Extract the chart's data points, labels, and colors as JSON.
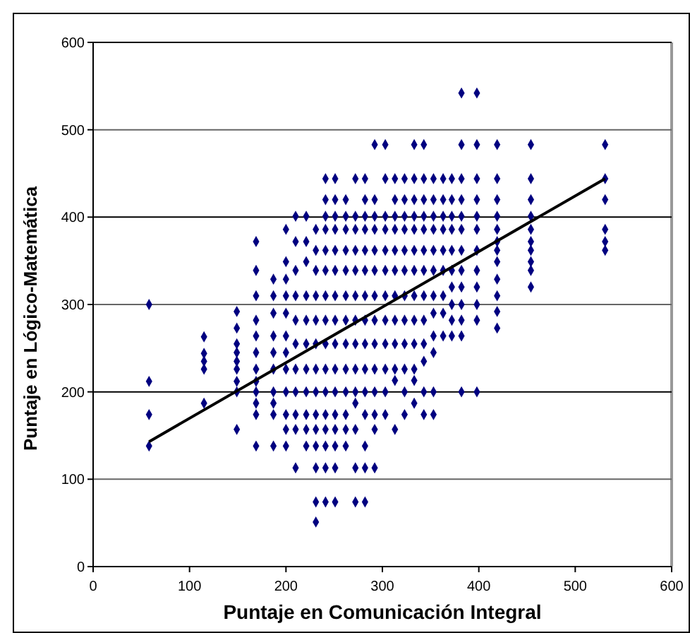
{
  "chart_data": {
    "type": "scatter",
    "xlabel": "Puntaje en Comunicación Integral",
    "ylabel": "Puntaje en Lógico-Matemática",
    "xlim": [
      0,
      600
    ],
    "ylim": [
      0,
      600
    ],
    "xticks": [
      0,
      100,
      200,
      300,
      400,
      500,
      600
    ],
    "yticks": [
      0,
      100,
      200,
      300,
      400,
      500,
      600
    ],
    "grid": "y",
    "marker": "diamond",
    "series": [
      {
        "color": "#000080",
        "x": [
          58,
          58,
          58,
          58,
          115,
          115,
          115,
          115,
          115,
          149,
          149,
          149,
          149,
          149,
          149,
          149,
          149,
          149,
          169,
          169,
          169,
          169,
          169,
          169,
          169,
          169,
          169,
          169,
          169,
          169,
          187,
          187,
          187,
          187,
          187,
          187,
          187,
          187,
          187,
          187,
          200,
          200,
          200,
          200,
          200,
          200,
          200,
          200,
          200,
          200,
          200,
          200,
          210,
          210,
          210,
          210,
          210,
          210,
          210,
          210,
          210,
          210,
          210,
          221,
          221,
          221,
          221,
          221,
          221,
          221,
          221,
          221,
          221,
          221,
          231,
          231,
          231,
          231,
          231,
          231,
          231,
          231,
          231,
          231,
          231,
          231,
          231,
          231,
          241,
          241,
          241,
          241,
          241,
          241,
          241,
          241,
          241,
          241,
          241,
          241,
          241,
          241,
          241,
          241,
          251,
          251,
          251,
          251,
          251,
          251,
          251,
          251,
          251,
          251,
          251,
          251,
          251,
          251,
          251,
          251,
          262,
          262,
          262,
          262,
          262,
          262,
          262,
          262,
          262,
          262,
          262,
          262,
          262,
          272,
          272,
          272,
          272,
          272,
          272,
          272,
          272,
          272,
          272,
          272,
          272,
          272,
          272,
          282,
          282,
          282,
          282,
          282,
          282,
          282,
          282,
          282,
          282,
          282,
          282,
          282,
          282,
          282,
          292,
          292,
          292,
          292,
          292,
          292,
          292,
          292,
          292,
          292,
          292,
          292,
          292,
          292,
          303,
          303,
          303,
          303,
          303,
          303,
          303,
          303,
          303,
          303,
          303,
          303,
          313,
          313,
          313,
          313,
          313,
          313,
          313,
          313,
          313,
          313,
          313,
          313,
          323,
          323,
          323,
          323,
          323,
          323,
          323,
          323,
          323,
          323,
          323,
          323,
          333,
          333,
          333,
          333,
          333,
          333,
          333,
          333,
          333,
          333,
          333,
          333,
          333,
          343,
          343,
          343,
          343,
          343,
          343,
          343,
          343,
          343,
          343,
          343,
          343,
          343,
          353,
          353,
          353,
          353,
          353,
          353,
          353,
          353,
          353,
          353,
          353,
          353,
          363,
          363,
          363,
          363,
          363,
          363,
          363,
          363,
          363,
          372,
          372,
          372,
          372,
          372,
          372,
          372,
          372,
          372,
          372,
          382,
          382,
          382,
          382,
          382,
          382,
          382,
          382,
          382,
          382,
          382,
          382,
          382,
          398,
          398,
          398,
          398,
          398,
          398,
          398,
          398,
          398,
          398,
          398,
          398,
          419,
          419,
          419,
          419,
          419,
          419,
          419,
          419,
          419,
          419,
          419,
          419,
          454,
          454,
          454,
          454,
          454,
          454,
          454,
          454,
          454,
          454,
          531,
          531,
          531,
          531,
          531,
          531
        ],
        "values": [
          138,
          174,
          212,
          300,
          187,
          226,
          235,
          244,
          263,
          157,
          200,
          212,
          226,
          235,
          245,
          255,
          273,
          292,
          138,
          174,
          187,
          200,
          212,
          226,
          245,
          264,
          282,
          310,
          339,
          372,
          138,
          174,
          187,
          200,
          226,
          245,
          264,
          290,
          310,
          329,
          138,
          157,
          174,
          200,
          226,
          245,
          264,
          290,
          310,
          329,
          349,
          386,
          113,
          157,
          174,
          200,
          226,
          255,
          282,
          310,
          339,
          372,
          401,
          138,
          157,
          174,
          200,
          226,
          255,
          282,
          310,
          349,
          372,
          401,
          51,
          74,
          113,
          138,
          157,
          174,
          200,
          226,
          255,
          282,
          310,
          339,
          362,
          386,
          74,
          113,
          138,
          157,
          174,
          200,
          226,
          255,
          282,
          310,
          339,
          362,
          386,
          401,
          420,
          444,
          74,
          113,
          138,
          157,
          174,
          200,
          226,
          255,
          282,
          310,
          339,
          362,
          386,
          401,
          420,
          444,
          138,
          157,
          174,
          200,
          226,
          255,
          282,
          310,
          339,
          362,
          386,
          401,
          420,
          74,
          113,
          157,
          187,
          200,
          226,
          255,
          282,
          310,
          339,
          362,
          386,
          401,
          444,
          74,
          113,
          138,
          174,
          200,
          226,
          255,
          282,
          310,
          339,
          362,
          386,
          401,
          420,
          444,
          113,
          157,
          174,
          200,
          226,
          255,
          282,
          310,
          339,
          362,
          386,
          401,
          420,
          483,
          174,
          200,
          226,
          255,
          282,
          310,
          339,
          362,
          386,
          401,
          444,
          483,
          157,
          213,
          226,
          255,
          282,
          310,
          339,
          362,
          386,
          401,
          420,
          444,
          174,
          200,
          226,
          255,
          282,
          310,
          339,
          362,
          386,
          401,
          420,
          444,
          187,
          213,
          226,
          255,
          282,
          310,
          339,
          362,
          386,
          401,
          420,
          444,
          483,
          174,
          200,
          235,
          255,
          282,
          310,
          339,
          362,
          386,
          401,
          420,
          444,
          483,
          174,
          200,
          245,
          264,
          290,
          310,
          339,
          362,
          386,
          401,
          420,
          444,
          264,
          290,
          310,
          339,
          362,
          386,
          401,
          420,
          444,
          264,
          282,
          300,
          320,
          339,
          362,
          386,
          401,
          420,
          444,
          200,
          264,
          282,
          300,
          320,
          339,
          362,
          386,
          401,
          420,
          444,
          483,
          542,
          200,
          282,
          300,
          320,
          339,
          362,
          386,
          401,
          420,
          444,
          483,
          542,
          273,
          292,
          310,
          329,
          349,
          362,
          372,
          386,
          401,
          420,
          444,
          483,
          320,
          339,
          349,
          362,
          372,
          386,
          401,
          420,
          444,
          483,
          362,
          372,
          386,
          420,
          444,
          483
        ]
      },
      {
        "type": "line",
        "color": "#000000",
        "marker": "none",
        "line_style": "solid",
        "x": [
          58,
          531
        ],
        "values": [
          143,
          444
        ]
      }
    ]
  }
}
